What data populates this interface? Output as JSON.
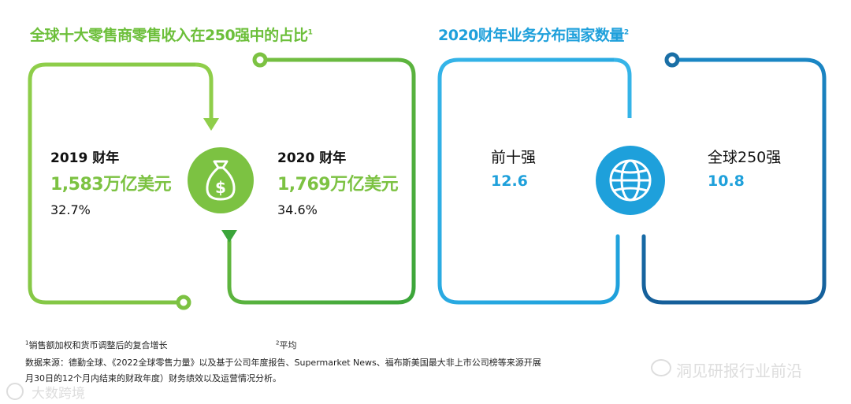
{
  "left": {
    "title": "全球十大零售商零售收入在250强中的占比",
    "title_sup": "1",
    "fy2019": {
      "year": "2019 财年",
      "value": "1,583万亿美元",
      "pct": "32.7%"
    },
    "fy2020": {
      "year": "2020 财年",
      "value": "1,769万亿美元",
      "pct": "34.6%"
    },
    "icon": "money-bag-icon",
    "color": "#7cc242"
  },
  "right": {
    "title": "2020财年业务分布国家数量",
    "title_sup": "2",
    "top10": {
      "label": "前十强",
      "value": "12.6"
    },
    "top250": {
      "label": "全球250强",
      "value": "10.8"
    },
    "icon": "globe-icon",
    "color_light": "#2aa8e0",
    "color_dark": "#1a6fa6"
  },
  "footnotes": {
    "note1_sup": "1",
    "note1": "销售额加权和货币调整后的复合增长",
    "note2_sup": "2",
    "note2": "平均",
    "source_line1": "数据来源：德勤全球、《2022全球零售力量》以及基于公司年度报告、Supermarket News、福布斯美国最大非上市公司榜等来源开展",
    "source_line2": "月30日的12个月内结束的财政年度）财务绩效以及运营情况分析。"
  },
  "watermarks": {
    "right": "洞见研报行业前沿",
    "left": "大数跨境"
  }
}
